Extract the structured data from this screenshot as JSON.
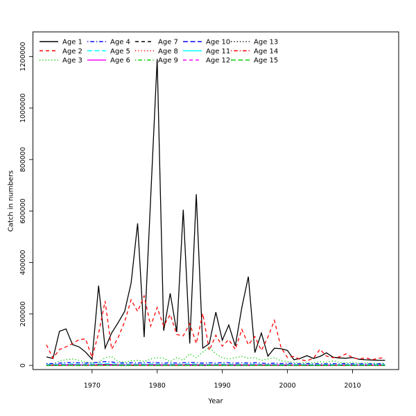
{
  "chart_data": {
    "type": "line",
    "title": "",
    "xlabel": "Year",
    "ylabel": "Catch in numbers",
    "grid": false,
    "legend_position": "top-left-inside",
    "legend_columns": 5,
    "xlim": [
      1960.92,
      2017.08
    ],
    "ylim": [
      -16000,
      1296000
    ],
    "x_ticks": [
      1970,
      1980,
      1990,
      2000,
      2010
    ],
    "y_ticks": [
      0,
      200000,
      400000,
      600000,
      800000,
      1000000,
      1200000
    ],
    "x": [
      1963,
      1964,
      1965,
      1966,
      1967,
      1968,
      1969,
      1970,
      1971,
      1972,
      1973,
      1974,
      1975,
      1976,
      1977,
      1978,
      1979,
      1980,
      1981,
      1982,
      1983,
      1984,
      1985,
      1986,
      1987,
      1988,
      1989,
      1990,
      1991,
      1992,
      1993,
      1994,
      1995,
      1996,
      1997,
      1998,
      1999,
      2000,
      2001,
      2002,
      2003,
      2004,
      2005,
      2006,
      2007,
      2008,
      2009,
      2010,
      2011,
      2012,
      2013,
      2014,
      2015
    ],
    "series": [
      {
        "name": "Age 1",
        "color": "#000000",
        "linetype": "solid",
        "values": [
          33000,
          27000,
          133000,
          142000,
          81000,
          72000,
          52000,
          24000,
          310000,
          67000,
          126000,
          166000,
          210000,
          320000,
          552000,
          110000,
          650000,
          1190000,
          135000,
          280000,
          130000,
          605000,
          85000,
          665000,
          67000,
          85000,
          207000,
          98000,
          157000,
          76000,
          225000,
          345000,
          50000,
          126000,
          36000,
          67000,
          65000,
          58000,
          22000,
          28000,
          38000,
          27000,
          35000,
          49000,
          32000,
          29000,
          28000,
          31000,
          24000,
          22000,
          21000,
          20000,
          20000
        ]
      },
      {
        "name": "Age 2",
        "color": "#FF0000",
        "linetype": "dashed",
        "values": [
          80000,
          28000,
          62000,
          72000,
          85000,
          100000,
          103000,
          31000,
          125000,
          250000,
          63000,
          108000,
          170000,
          255000,
          210000,
          270000,
          153000,
          225000,
          153000,
          198000,
          120000,
          115000,
          162000,
          85000,
          202000,
          58000,
          117000,
          75000,
          100000,
          62000,
          140000,
          80000,
          112000,
          58000,
          110000,
          175000,
          70000,
          31000,
          35000,
          22000,
          18000,
          28000,
          63000,
          36000,
          30000,
          33000,
          45000,
          30000,
          25000,
          30000,
          22000,
          28000,
          30000
        ]
      },
      {
        "name": "Age 3",
        "color": "#00CD00",
        "linetype": "dotted",
        "values": [
          8000,
          5000,
          18000,
          22000,
          25000,
          20000,
          12000,
          10000,
          12000,
          30000,
          35000,
          15000,
          12000,
          18000,
          20000,
          15000,
          25000,
          30000,
          28000,
          15000,
          30000,
          20000,
          45000,
          30000,
          52000,
          70000,
          45000,
          30000,
          25000,
          30000,
          35000,
          28000,
          30000,
          20000,
          25000,
          30000,
          18000,
          15000,
          12000,
          10000,
          12000,
          10000,
          15000,
          12000,
          18000,
          12000,
          10000,
          12000,
          8000,
          10000,
          8000,
          8000,
          10000
        ]
      },
      {
        "name": "Age 4",
        "color": "#0000FF",
        "linetype": "dotdash",
        "values": [
          7200,
          7200,
          9000,
          10800,
          12000,
          10800,
          9000,
          10800,
          12000,
          15000,
          13200,
          10800,
          9000,
          10800,
          9000,
          10800,
          12000,
          10800,
          9000,
          10800,
          9000,
          10800,
          12000,
          10800,
          9000,
          10800,
          9000,
          10800,
          10800,
          9000,
          10800,
          9000,
          10800,
          9000,
          7200,
          9000,
          7200,
          9000,
          7200,
          6000,
          7200,
          6000,
          7200,
          6000,
          7200,
          6000,
          7200,
          6000,
          6000,
          6000,
          6000,
          6000,
          6000
        ]
      },
      {
        "name": "Age 5",
        "color": "#00FFFF",
        "linetype": "longdash",
        "values": [
          3600,
          3600,
          4500,
          5400,
          6000,
          5400,
          4500,
          5400,
          6000,
          7500,
          6600,
          5400,
          4500,
          5400,
          4500,
          5400,
          6000,
          5400,
          4500,
          5400,
          4500,
          5400,
          6000,
          5400,
          4500,
          5400,
          4500,
          5400,
          5400,
          4500,
          5400,
          4500,
          5400,
          4500,
          3600,
          4500,
          3600,
          4500,
          3600,
          3000,
          3600,
          3000,
          3600,
          3000,
          3600,
          3000,
          3600,
          3000,
          3000,
          3000,
          3000,
          3000,
          3000
        ]
      },
      {
        "name": "Age 6",
        "color": "#FF00FF",
        "linetype": "solid",
        "values": [
          1800,
          1800,
          2250,
          2700,
          3000,
          2700,
          2250,
          2700,
          3000,
          3750,
          3300,
          2700,
          2250,
          2700,
          2250,
          2700,
          3000,
          2700,
          2250,
          2700,
          2250,
          2700,
          3000,
          2700,
          2250,
          2700,
          2250,
          2700,
          2700,
          2250,
          2700,
          2250,
          2700,
          2250,
          1800,
          2250,
          1800,
          2250,
          1800,
          1500,
          1800,
          1500,
          1800,
          1500,
          1800,
          1500,
          1800,
          1500,
          1500,
          1500,
          1500,
          1500,
          1500
        ]
      },
      {
        "name": "Age 7",
        "color": "#000000",
        "linetype": "dashed",
        "values": [
          1080,
          1080,
          1350,
          1620,
          1800,
          1620,
          1350,
          1620,
          1800,
          2250,
          1980,
          1620,
          1350,
          1620,
          1350,
          1620,
          1800,
          1620,
          1350,
          1620,
          1350,
          1620,
          1800,
          1620,
          1350,
          1620,
          1350,
          1620,
          1620,
          1350,
          1620,
          1350,
          1620,
          1350,
          1080,
          1350,
          1080,
          1350,
          1080,
          900,
          1080,
          900,
          1080,
          900,
          1080,
          900,
          1080,
          900,
          900,
          900,
          900,
          900,
          900
        ]
      },
      {
        "name": "Age 8",
        "color": "#FF0000",
        "linetype": "dotted",
        "values": [
          660,
          660,
          825,
          990,
          1100,
          990,
          825,
          990,
          1100,
          1375,
          1210,
          990,
          825,
          990,
          825,
          990,
          1100,
          990,
          825,
          990,
          825,
          990,
          1100,
          990,
          825,
          990,
          825,
          990,
          990,
          825,
          990,
          825,
          990,
          825,
          660,
          825,
          660,
          825,
          660,
          550,
          660,
          550,
          660,
          550,
          660,
          550,
          660,
          550,
          550,
          550,
          550,
          550,
          550
        ]
      },
      {
        "name": "Age 9",
        "color": "#00CD00",
        "linetype": "dotdash",
        "values": [
          420,
          420,
          525,
          630,
          700,
          630,
          525,
          630,
          700,
          875,
          770,
          630,
          525,
          630,
          525,
          630,
          700,
          630,
          525,
          630,
          525,
          630,
          700,
          630,
          525,
          630,
          525,
          630,
          630,
          525,
          630,
          525,
          630,
          525,
          420,
          525,
          420,
          525,
          420,
          350,
          420,
          350,
          420,
          350,
          420,
          350,
          420,
          350,
          350,
          350,
          350,
          350,
          350
        ]
      },
      {
        "name": "Age 10",
        "color": "#0000FF",
        "linetype": "longdash",
        "values": [
          270,
          270,
          338,
          405,
          450,
          405,
          338,
          405,
          450,
          563,
          495,
          405,
          338,
          405,
          338,
          405,
          450,
          405,
          338,
          405,
          338,
          405,
          450,
          405,
          338,
          405,
          338,
          405,
          405,
          338,
          405,
          338,
          405,
          338,
          270,
          338,
          270,
          338,
          270,
          225,
          270,
          225,
          270,
          225,
          270,
          225,
          270,
          225,
          225,
          225,
          225,
          225,
          225
        ]
      },
      {
        "name": "Age 11",
        "color": "#00FFFF",
        "linetype": "solid",
        "values": [
          192,
          192,
          240,
          288,
          320,
          288,
          240,
          288,
          320,
          400,
          352,
          288,
          240,
          288,
          240,
          288,
          320,
          288,
          240,
          288,
          240,
          288,
          320,
          288,
          240,
          288,
          240,
          288,
          288,
          240,
          288,
          240,
          288,
          240,
          192,
          240,
          192,
          240,
          192,
          160,
          192,
          160,
          192,
          160,
          192,
          160,
          192,
          160,
          160,
          160,
          160,
          160,
          160
        ]
      },
      {
        "name": "Age 12",
        "color": "#FF00FF",
        "linetype": "dashed",
        "values": [
          138,
          138,
          173,
          207,
          230,
          207,
          173,
          207,
          230,
          288,
          253,
          207,
          173,
          207,
          173,
          207,
          230,
          207,
          173,
          207,
          173,
          207,
          230,
          207,
          173,
          207,
          173,
          207,
          207,
          173,
          207,
          173,
          207,
          173,
          138,
          173,
          138,
          173,
          138,
          115,
          138,
          115,
          138,
          115,
          138,
          115,
          138,
          115,
          115,
          115,
          115,
          115,
          115
        ]
      },
      {
        "name": "Age 13",
        "color": "#000000",
        "linetype": "dotted",
        "values": [
          96,
          96,
          120,
          144,
          160,
          144,
          120,
          144,
          160,
          200,
          176,
          144,
          120,
          144,
          120,
          144,
          160,
          144,
          120,
          144,
          120,
          144,
          160,
          144,
          120,
          144,
          120,
          144,
          144,
          120,
          144,
          120,
          144,
          120,
          96,
          120,
          96,
          120,
          96,
          80,
          96,
          80,
          96,
          80,
          96,
          80,
          96,
          80,
          80,
          80,
          80,
          80,
          80
        ]
      },
      {
        "name": "Age 14",
        "color": "#FF0000",
        "linetype": "dotdash",
        "values": [
          66,
          66,
          83,
          99,
          110,
          99,
          83,
          99,
          110,
          138,
          121,
          99,
          83,
          99,
          83,
          99,
          110,
          99,
          83,
          99,
          83,
          99,
          110,
          99,
          83,
          99,
          83,
          99,
          99,
          83,
          99,
          83,
          99,
          83,
          66,
          83,
          66,
          83,
          66,
          55,
          66,
          55,
          66,
          55,
          66,
          55,
          66,
          55,
          55,
          55,
          55,
          55,
          55
        ]
      },
      {
        "name": "Age 15",
        "color": "#00CD00",
        "linetype": "longdash",
        "values": [
          39,
          39,
          49,
          59,
          65,
          59,
          49,
          59,
          65,
          81,
          72,
          59,
          49,
          59,
          49,
          59,
          65,
          59,
          49,
          59,
          49,
          59,
          65,
          59,
          49,
          59,
          49,
          59,
          59,
          49,
          59,
          49,
          59,
          49,
          39,
          49,
          39,
          49,
          39,
          33,
          39,
          33,
          39,
          33,
          39,
          33,
          39,
          33,
          33,
          33,
          33,
          33,
          33
        ]
      }
    ]
  }
}
